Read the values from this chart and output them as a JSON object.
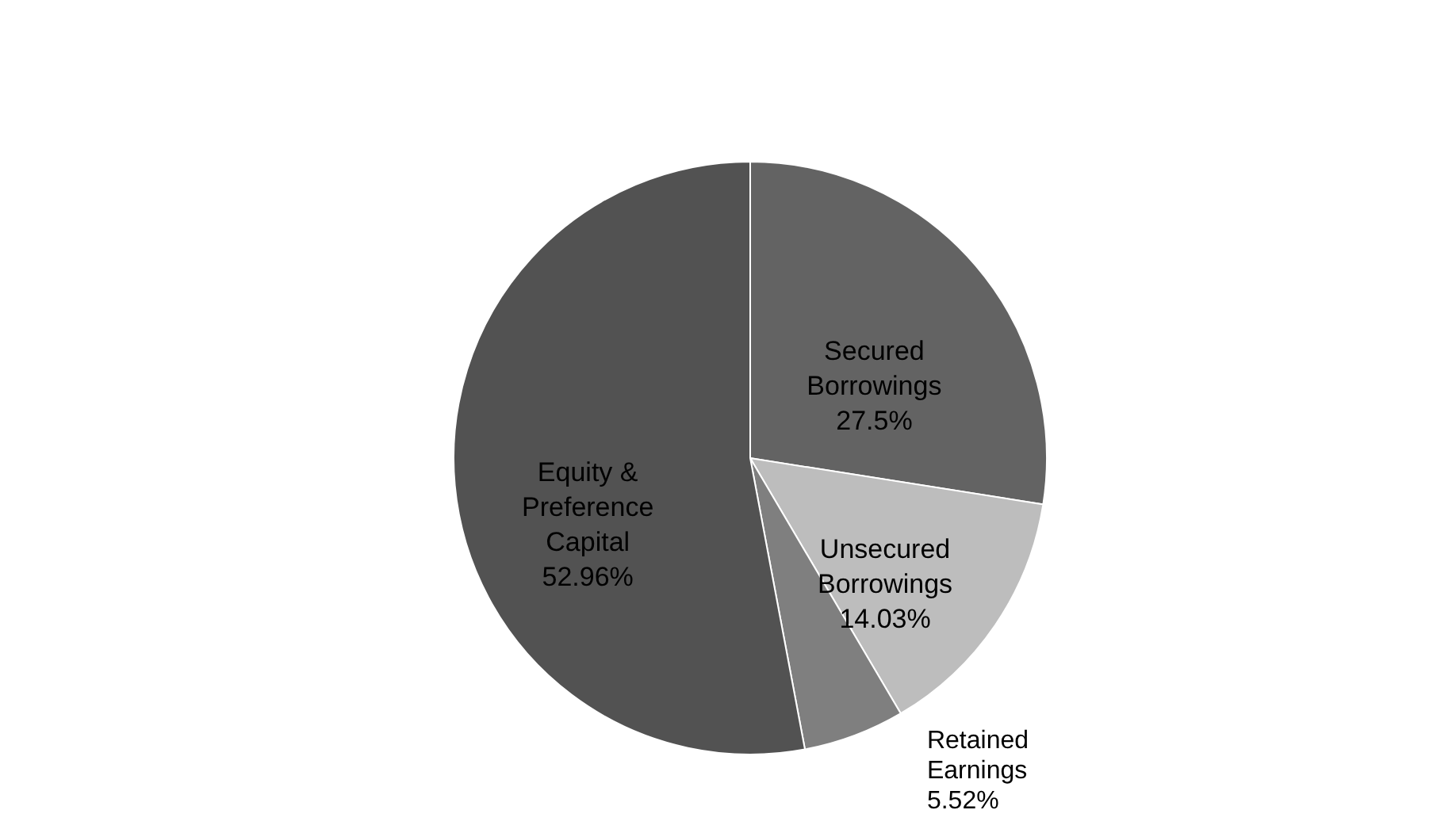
{
  "chart_data": {
    "type": "pie",
    "categories": [
      "Secured Borrowings",
      "Unsecured Borrowings",
      "Retained Earnings",
      "Equity & Preference Capital"
    ],
    "values": [
      27.5,
      14.03,
      5.52,
      52.96
    ],
    "value_labels": [
      "27.5%",
      "14.03%",
      "5.52%",
      "52.96%"
    ],
    "colors": [
      "#636363",
      "#bdbdbd",
      "#7f7f7f",
      "#525252"
    ],
    "legend": false
  }
}
